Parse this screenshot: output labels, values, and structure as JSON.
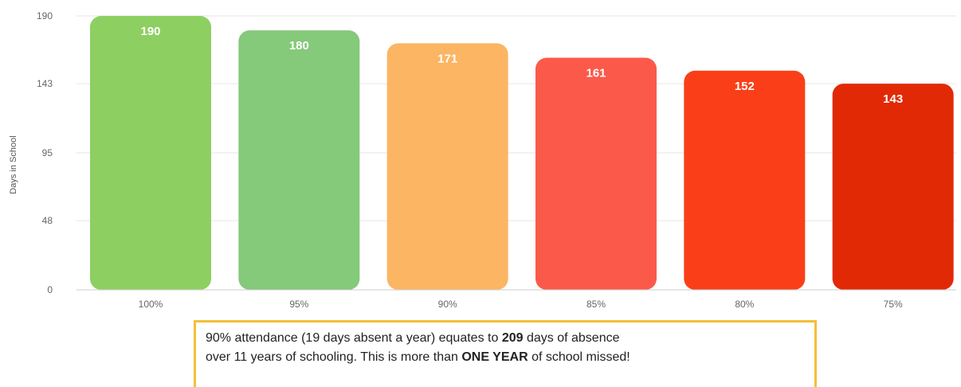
{
  "chart_data": {
    "type": "bar",
    "title": "",
    "xlabel": "",
    "ylabel": "Days in School",
    "categories": [
      "100%",
      "95%",
      "90%",
      "85%",
      "80%",
      "75%"
    ],
    "values": [
      190,
      180,
      171,
      161,
      152,
      143
    ],
    "data_labels": [
      "190",
      "180",
      "171",
      "161",
      "152",
      "143"
    ],
    "colors": [
      "#8ecf62",
      "#85c97a",
      "#fbb563",
      "#fb5a4a",
      "#fa3f18",
      "#e12a05"
    ],
    "yticks": [
      0,
      48,
      95,
      143,
      190
    ],
    "ytick_labels": [
      "0",
      "48",
      "95",
      "143",
      "190"
    ],
    "ylim": [
      0,
      190
    ],
    "grid": true,
    "legend": "none"
  },
  "note": {
    "line1_before": "90% attendance (19 days absent a year) equates to ",
    "line1_bold": "209",
    "line1_after": " days of absence",
    "line2_before": "over 11 years of schooling. This is more than ",
    "line2_bold": "ONE YEAR",
    "line2_after": " of school missed!",
    "border_color": "#f2c038"
  }
}
